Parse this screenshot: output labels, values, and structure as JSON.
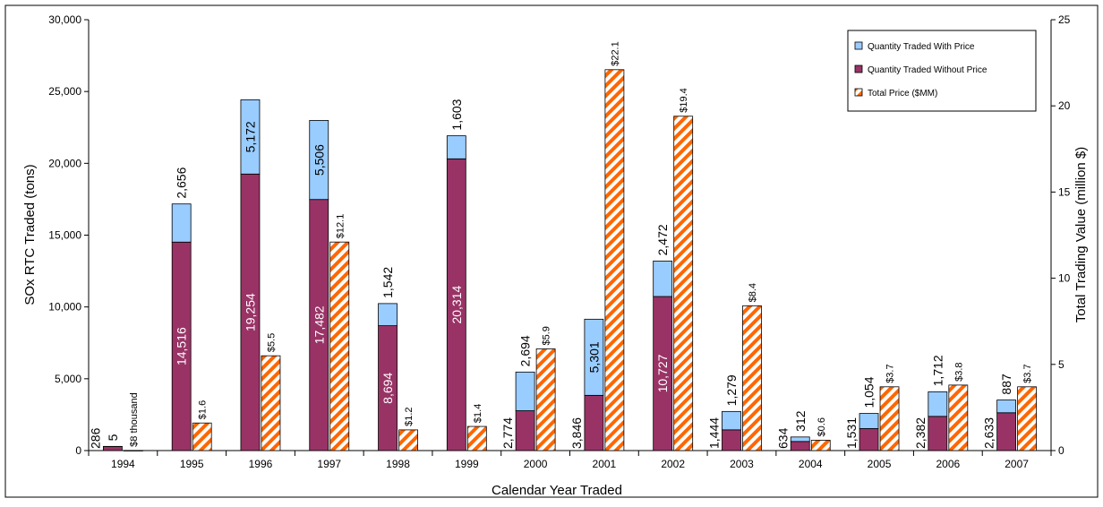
{
  "chart_data": {
    "type": "bar",
    "categories": [
      "1994",
      "1995",
      "1996",
      "1997",
      "1998",
      "1999",
      "2000",
      "2001",
      "2002",
      "2003",
      "2004",
      "2005",
      "2006",
      "2007"
    ],
    "xlabel": "Calendar Year Traded",
    "ylabel": "SOx RTC Traded (tons)",
    "y2label": "Total Trading Value (million $)",
    "ylim": [
      0,
      30000
    ],
    "y2lim": [
      0,
      25
    ],
    "yticks": [
      "0",
      "5,000",
      "10,000",
      "15,000",
      "20,000",
      "25,000",
      "30,000"
    ],
    "y2ticks": [
      "0",
      "5",
      "10",
      "15",
      "20",
      "25"
    ],
    "legend_position": "top-right",
    "series": [
      {
        "name": "Quantity Traded With Price",
        "color": "#99CCFF",
        "axis": "left",
        "values": [
          5,
          2656,
          5172,
          5506,
          1542,
          1603,
          2694,
          5301,
          2472,
          1279,
          312,
          1054,
          1712,
          887
        ],
        "labels": [
          "5",
          "2,656",
          "5,172",
          "5,506",
          "1,542",
          "1,603",
          "2,694",
          "5,301",
          "2,472",
          "1,279",
          "312",
          "1,054",
          "1,712",
          "887"
        ]
      },
      {
        "name": "Quantity Traded Without Price",
        "color": "#993366",
        "axis": "left",
        "values": [
          286,
          14516,
          19254,
          17482,
          8694,
          20314,
          2774,
          3846,
          10727,
          1444,
          634,
          1531,
          2382,
          2633
        ],
        "labels": [
          "286",
          "14,516",
          "19,254",
          "17,482",
          "8,694",
          "20,314",
          "2,774",
          "3,846",
          "10,727",
          "1,444",
          "634",
          "1,531",
          "2,382",
          "2,633"
        ]
      },
      {
        "name": "Total Price ($MM)",
        "color": "#FF6600",
        "pattern": "diagonal-stripes",
        "axis": "right",
        "values": [
          0.008,
          1.6,
          5.5,
          12.1,
          1.2,
          1.4,
          5.9,
          22.1,
          19.4,
          8.4,
          0.6,
          3.7,
          3.8,
          3.7
        ],
        "labels": [
          "$8 thousand",
          "$1.6",
          "$5.5",
          "$12.1",
          "$1.2",
          "$1.4",
          "$5.9",
          "$22.1",
          "$19.4",
          "$8.4",
          "$0.6",
          "$3.7",
          "$3.8",
          "$3.7"
        ]
      }
    ]
  }
}
